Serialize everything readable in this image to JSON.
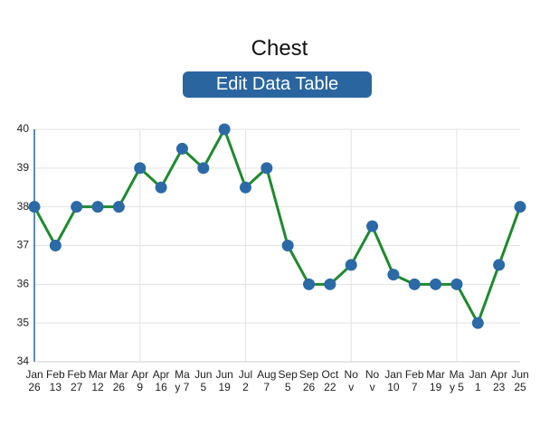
{
  "button": "Edit Data Table",
  "chart_data": {
    "type": "line",
    "title": "Chest",
    "categories": [
      "Jan\n26",
      "Feb\n13",
      "Feb\n27",
      "Mar\n12",
      "Mar\n26",
      "Apr\n9",
      "Apr\n16",
      "Ma\ny 7",
      "Jun\n5",
      "Jun\n19",
      "Jul\n2",
      "Aug\n7",
      "Sep\n5",
      "Sep\n26",
      "Oct\n22",
      "No\nv",
      "No\nv",
      "Jan\n10",
      "Feb\n7",
      "Mar\n19",
      "Ma\ny 5",
      "Jan\n1",
      "Apr\n23",
      "Jun\n25"
    ],
    "values": [
      38,
      37,
      38,
      38,
      38,
      39,
      38.5,
      39.5,
      39,
      40,
      38.5,
      39,
      37,
      36,
      36,
      36.5,
      37.5,
      36.25,
      36,
      36,
      36,
      35,
      36.5,
      38
    ],
    "line_color": "#1e8a2e",
    "marker_color": "#2b6aa6",
    "ylim": [
      34,
      40
    ],
    "yticks": [
      34,
      35,
      36,
      37,
      38,
      39,
      40
    ],
    "grid": true
  }
}
